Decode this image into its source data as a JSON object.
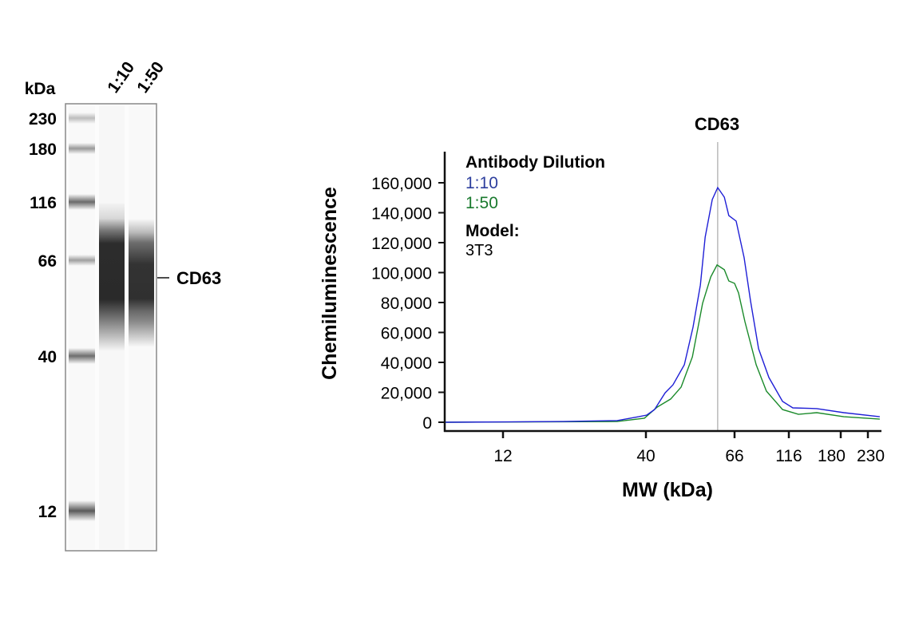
{
  "gel": {
    "unit_label": "kDa",
    "lane_labels": [
      "1:10",
      "1:50"
    ],
    "ladder": [
      {
        "label": "230",
        "mw": 230
      },
      {
        "label": "180",
        "mw": 180
      },
      {
        "label": "116",
        "mw": 116
      },
      {
        "label": "66",
        "mw": 66
      },
      {
        "label": "40",
        "mw": 40
      },
      {
        "label": "12",
        "mw": 12
      }
    ],
    "band_label": "CD63"
  },
  "chart_data": {
    "type": "line",
    "title": "CD63",
    "xlabel": "MW (kDa)",
    "ylabel": "Chemiluminescence",
    "x_scale": "log (piecewise by ladder markers)",
    "xticks": [
      12,
      40,
      66,
      116,
      180,
      230
    ],
    "xtick_labels": [
      "12",
      "40",
      "66",
      "116",
      "180",
      "230"
    ],
    "yticks": [
      0,
      20000,
      40000,
      60000,
      80000,
      100000,
      120000,
      140000,
      160000
    ],
    "ytick_labels": [
      "0",
      "20,000",
      "40,000",
      "60,000",
      "80,000",
      "100,000",
      "120,000",
      "140,000",
      "160,000"
    ],
    "ylim": [
      0,
      160000
    ],
    "grid": false,
    "reference_line_mw": 60,
    "legend": {
      "title": "Antibody Dilution",
      "placement": "top-left",
      "model_label": "Model:",
      "model_value": "3T3"
    },
    "series": [
      {
        "name": "1:10",
        "color": "#1f1fd6",
        "points": [
          [
            7.4,
            0
          ],
          [
            20,
            500
          ],
          [
            31.4,
            1100
          ],
          [
            37.6,
            3700
          ],
          [
            40.2,
            4800
          ],
          [
            42,
            8500
          ],
          [
            44.6,
            19700
          ],
          [
            46.6,
            25000
          ],
          [
            49.7,
            38400
          ],
          [
            52.2,
            63500
          ],
          [
            54.4,
            91700
          ],
          [
            55.9,
            123700
          ],
          [
            58.2,
            148800
          ],
          [
            60,
            156800
          ],
          [
            62.3,
            150400
          ],
          [
            63.9,
            138100
          ],
          [
            67.1,
            134400
          ],
          [
            72.9,
            109900
          ],
          [
            77.9,
            81100
          ],
          [
            84.7,
            49100
          ],
          [
            94.3,
            29900
          ],
          [
            108.6,
            13900
          ],
          [
            120,
            9600
          ],
          [
            147,
            9100
          ],
          [
            185,
            6400
          ],
          [
            256,
            3700
          ]
        ]
      },
      {
        "name": "1:50",
        "color": "#1a8a2a",
        "points": [
          [
            7.4,
            0
          ],
          [
            31.4,
            500
          ],
          [
            39.5,
            2700
          ],
          [
            42.6,
            10100
          ],
          [
            46,
            15500
          ],
          [
            48.8,
            23500
          ],
          [
            52,
            43700
          ],
          [
            55.1,
            79500
          ],
          [
            57.7,
            97100
          ],
          [
            59.8,
            105100
          ],
          [
            62.3,
            101900
          ],
          [
            63.9,
            94400
          ],
          [
            66,
            92800
          ],
          [
            68.8,
            86400
          ],
          [
            73.5,
            67200
          ],
          [
            82.6,
            38400
          ],
          [
            91.9,
            20800
          ],
          [
            108.6,
            8500
          ],
          [
            125.8,
            5300
          ],
          [
            147,
            6400
          ],
          [
            185,
            3700
          ],
          [
            256,
            2100
          ]
        ]
      }
    ],
    "legend_colors": {
      "1:10": "#2e3f9e",
      "1:50": "#1a7a2e"
    }
  }
}
